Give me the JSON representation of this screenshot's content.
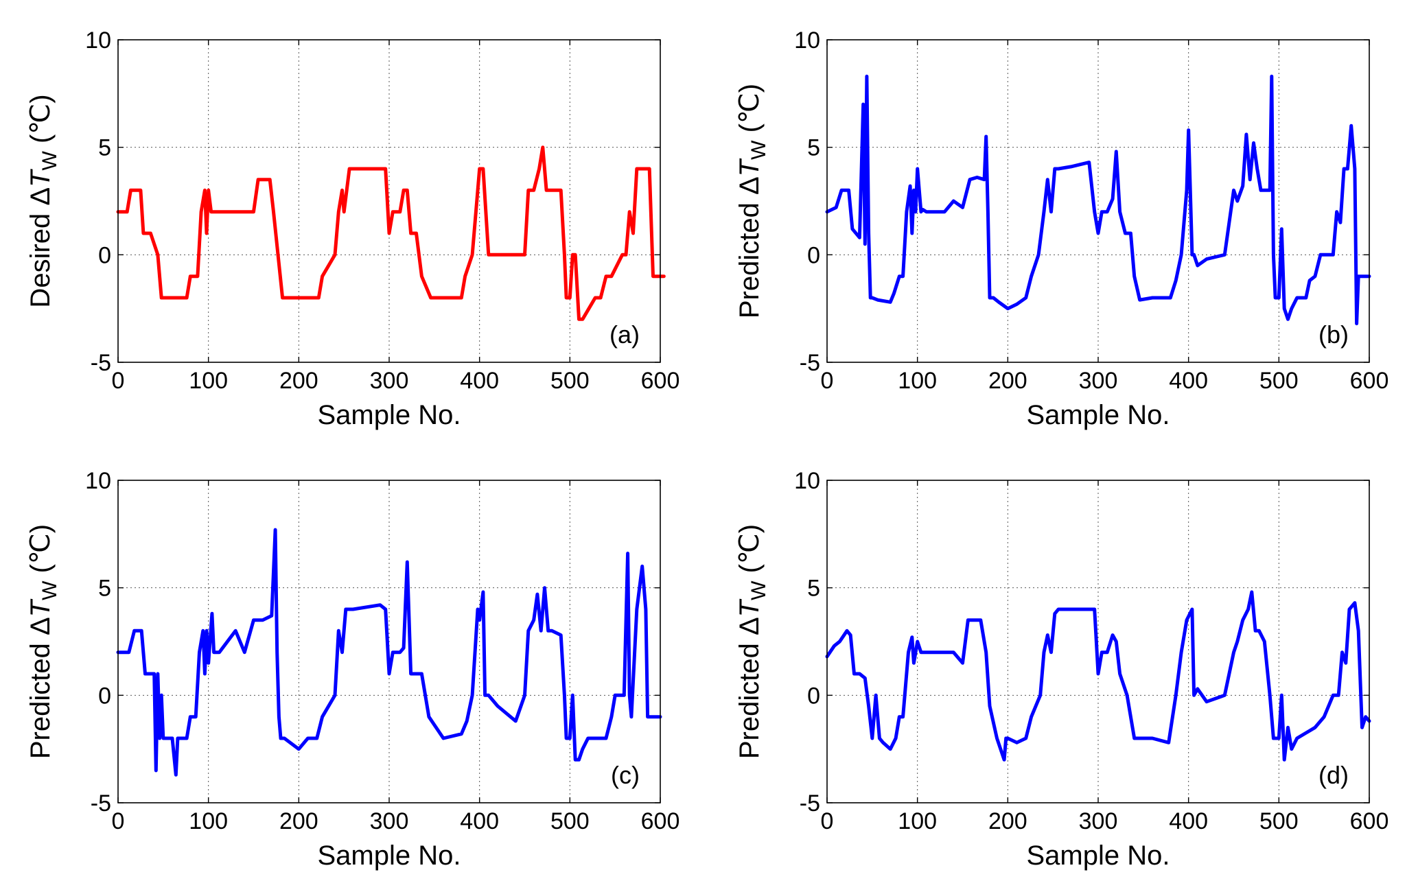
{
  "chart_data": [
    {
      "type": "line",
      "panel_tag": "(a)",
      "title": "",
      "xlabel": "Sample No.",
      "ylabel_left": "Desired",
      "ylabel_delta": "Δ",
      "ylabel_var": "T",
      "ylabel_sub": "W",
      "ylabel_unit": "(℃)",
      "xlim": [
        0,
        600
      ],
      "ylim": [
        -5,
        10
      ],
      "xticks": [
        0,
        100,
        200,
        300,
        400,
        500,
        600
      ],
      "yticks": [
        -5,
        0,
        5,
        10
      ],
      "grid": true,
      "color": "#ff0000",
      "series": [
        {
          "name": "Desired ΔTw",
          "x": [
            0,
            10,
            14,
            25,
            28,
            36,
            44,
            48,
            52,
            76,
            80,
            88,
            92,
            96,
            98,
            100,
            103,
            106,
            150,
            155,
            168,
            172,
            182,
            222,
            226,
            240,
            244,
            248,
            250,
            256,
            296,
            300,
            304,
            312,
            316,
            320,
            324,
            330,
            336,
            346,
            380,
            384,
            392,
            396,
            400,
            404,
            410,
            450,
            454,
            460,
            466,
            470,
            474,
            480,
            490,
            494,
            496,
            500,
            503,
            506,
            510,
            514,
            528,
            534,
            540,
            546,
            558,
            562,
            566,
            570,
            574,
            588,
            592,
            604
          ],
          "values": [
            2,
            2,
            3,
            3,
            1,
            1,
            0,
            -2,
            -2,
            -2,
            -1,
            -1,
            2,
            3,
            1,
            3,
            2,
            2,
            2,
            3.5,
            3.5,
            2,
            -2,
            -2,
            -1,
            0,
            2,
            3,
            2,
            4,
            4,
            1,
            2,
            2,
            3,
            3,
            1,
            1,
            -1,
            -2,
            -2,
            -1,
            0,
            2,
            4,
            4,
            0,
            0,
            3,
            3,
            4,
            5,
            3,
            3,
            3,
            0,
            -2,
            -2,
            0,
            0,
            -3,
            -3,
            -2,
            -2,
            -1,
            -1,
            0,
            0,
            2,
            1,
            4,
            4,
            -1,
            -1
          ]
        }
      ]
    },
    {
      "type": "line",
      "panel_tag": "(b)",
      "title": "",
      "xlabel": "Sample No.",
      "ylabel_left": "Predicted",
      "ylabel_delta": "Δ",
      "ylabel_var": "T",
      "ylabel_sub": "W",
      "ylabel_unit": "(℃)",
      "xlim": [
        0,
        600
      ],
      "ylim": [
        -5,
        10
      ],
      "xticks": [
        0,
        100,
        200,
        300,
        400,
        500,
        600
      ],
      "yticks": [
        -5,
        0,
        5,
        10
      ],
      "grid": true,
      "color": "#0000ff",
      "series": [
        {
          "name": "Predicted ΔTw",
          "x": [
            0,
            10,
            16,
            24,
            28,
            36,
            40,
            42,
            44,
            46,
            48,
            50,
            56,
            70,
            74,
            80,
            84,
            88,
            92,
            94,
            96,
            98,
            100,
            104,
            106,
            110,
            130,
            140,
            150,
            158,
            166,
            174,
            176,
            178,
            180,
            184,
            190,
            200,
            210,
            220,
            226,
            234,
            240,
            244,
            248,
            252,
            256,
            270,
            290,
            296,
            300,
            304,
            310,
            316,
            320,
            324,
            330,
            336,
            340,
            346,
            360,
            380,
            386,
            392,
            398,
            400,
            404,
            406,
            410,
            420,
            440,
            450,
            454,
            460,
            464,
            468,
            472,
            476,
            480,
            484,
            490,
            492,
            494,
            496,
            500,
            503,
            506,
            510,
            514,
            520,
            530,
            534,
            540,
            546,
            560,
            564,
            568,
            572,
            576,
            580,
            584,
            586,
            588,
            590,
            594,
            600
          ],
          "values": [
            2,
            2.2,
            3,
            3,
            1.2,
            0.8,
            7,
            0.5,
            8.3,
            1,
            -2,
            -2,
            -2.1,
            -2.2,
            -1.8,
            -1,
            -1,
            2,
            3.2,
            1,
            3,
            2,
            4,
            2,
            2.1,
            2,
            2,
            2.5,
            2.2,
            3.5,
            3.6,
            3.5,
            5.5,
            2,
            -2,
            -2,
            -2.2,
            -2.5,
            -2.3,
            -2,
            -1,
            0,
            2,
            3.5,
            2,
            4,
            4,
            4.1,
            4.3,
            2,
            1,
            2,
            2,
            2.6,
            4.8,
            2,
            1,
            1,
            -1,
            -2.1,
            -2,
            -2,
            -1.2,
            0,
            3,
            5.8,
            0,
            0,
            -0.5,
            -0.2,
            0,
            3,
            2.5,
            3.2,
            5.6,
            3.5,
            5.2,
            4,
            3,
            3,
            3,
            8.3,
            0,
            -2,
            -2,
            1.2,
            -2.5,
            -3,
            -2.5,
            -2,
            -2,
            -1.2,
            -1,
            0,
            0,
            2,
            1.5,
            4,
            4,
            6,
            4,
            -3.2,
            -1,
            -1,
            -1,
            -1
          ]
        }
      ]
    },
    {
      "type": "line",
      "panel_tag": "(c)",
      "title": "",
      "xlabel": "Sample No.",
      "ylabel_left": "Predicted",
      "ylabel_delta": "Δ",
      "ylabel_var": "T",
      "ylabel_sub": "W",
      "ylabel_unit": "(℃)",
      "xlim": [
        0,
        600
      ],
      "ylim": [
        -5,
        10
      ],
      "xticks": [
        0,
        100,
        200,
        300,
        400,
        500,
        600
      ],
      "yticks": [
        -5,
        0,
        5,
        10
      ],
      "grid": true,
      "color": "#0000ff",
      "series": [
        {
          "name": "Predicted ΔTw",
          "x": [
            0,
            12,
            18,
            26,
            30,
            36,
            40,
            42,
            44,
            46,
            48,
            50,
            52,
            56,
            60,
            64,
            66,
            70,
            76,
            80,
            86,
            90,
            94,
            96,
            98,
            100,
            104,
            106,
            108,
            112,
            130,
            140,
            150,
            160,
            170,
            174,
            176,
            178,
            180,
            184,
            200,
            210,
            220,
            226,
            240,
            244,
            248,
            252,
            260,
            290,
            296,
            300,
            304,
            312,
            316,
            320,
            324,
            328,
            336,
            344,
            360,
            380,
            386,
            392,
            398,
            400,
            404,
            406,
            410,
            420,
            440,
            450,
            454,
            460,
            464,
            468,
            472,
            476,
            480,
            490,
            494,
            496,
            500,
            503,
            506,
            510,
            514,
            520,
            540,
            546,
            550,
            560,
            564,
            566,
            568,
            574,
            580,
            584,
            586,
            590,
            600
          ],
          "values": [
            2,
            2,
            3,
            3,
            1,
            1,
            1,
            -3.5,
            1,
            -2,
            0,
            -2,
            -2,
            -2,
            -2,
            -3.7,
            -2,
            -2,
            -2,
            -1,
            -1,
            2,
            3,
            1,
            3,
            1.5,
            3.8,
            2,
            2,
            2,
            3,
            2,
            3.5,
            3.5,
            3.7,
            7.7,
            2,
            -1,
            -2,
            -2,
            -2.5,
            -2,
            -2,
            -1,
            0,
            3,
            2,
            4,
            4,
            4.2,
            4,
            1,
            2,
            2,
            2.2,
            6.2,
            1,
            1,
            1,
            -1,
            -2,
            -1.8,
            -1.2,
            0,
            4,
            3.5,
            4.8,
            0,
            0,
            -0.5,
            -1.2,
            0,
            3,
            3.5,
            4.7,
            3,
            5,
            3,
            3,
            2.8,
            0,
            -2,
            -2,
            0,
            -3,
            -3,
            -2.5,
            -2,
            -2,
            -1,
            0,
            0,
            6.6,
            0,
            -1,
            4,
            6,
            4,
            -1,
            -1,
            -1
          ]
        }
      ]
    },
    {
      "type": "line",
      "panel_tag": "(d)",
      "title": "",
      "xlabel": "Sample No.",
      "ylabel_left": "Predicted",
      "ylabel_delta": "Δ",
      "ylabel_var": "T",
      "ylabel_sub": "W",
      "ylabel_unit": "(℃)",
      "xlim": [
        0,
        600
      ],
      "ylim": [
        -5,
        10
      ],
      "xticks": [
        0,
        100,
        200,
        300,
        400,
        500,
        600
      ],
      "yticks": [
        -5,
        0,
        5,
        10
      ],
      "grid": true,
      "color": "#0000ff",
      "series": [
        {
          "name": "Predicted ΔTw",
          "x": [
            0,
            8,
            14,
            22,
            26,
            30,
            36,
            42,
            46,
            50,
            54,
            58,
            62,
            70,
            76,
            80,
            84,
            90,
            94,
            96,
            100,
            104,
            108,
            120,
            140,
            150,
            156,
            170,
            176,
            180,
            188,
            196,
            198,
            200,
            210,
            220,
            226,
            236,
            240,
            244,
            248,
            252,
            256,
            260,
            280,
            296,
            300,
            304,
            310,
            316,
            320,
            324,
            332,
            340,
            346,
            360,
            378,
            386,
            392,
            398,
            404,
            406,
            410,
            420,
            440,
            450,
            454,
            460,
            466,
            470,
            474,
            478,
            484,
            490,
            494,
            500,
            503,
            506,
            510,
            514,
            520,
            540,
            550,
            560,
            566,
            570,
            574,
            578,
            584,
            588,
            592,
            596,
            600
          ],
          "values": [
            1.8,
            2.3,
            2.5,
            3,
            2.8,
            1,
            1,
            0.8,
            -0.5,
            -2,
            0,
            -2,
            -2.2,
            -2.5,
            -2,
            -1,
            -1,
            2,
            2.7,
            1.5,
            2.5,
            2,
            2,
            2,
            2,
            1.5,
            3.5,
            3.5,
            2,
            -0.5,
            -2,
            -3,
            -2,
            -2,
            -2.2,
            -2,
            -1,
            0,
            2,
            2.8,
            2,
            3.8,
            4,
            4,
            4,
            4,
            1,
            2,
            2,
            2.8,
            2.5,
            1,
            0,
            -2,
            -2,
            -2,
            -2.2,
            0,
            2,
            3.5,
            4,
            0,
            0.3,
            -0.3,
            0,
            2,
            2.5,
            3.5,
            4,
            4.8,
            3,
            3,
            2.5,
            0,
            -2,
            -2,
            0,
            -3,
            -1.5,
            -2.5,
            -2,
            -1.5,
            -1,
            0,
            0,
            2,
            1.5,
            4,
            4.3,
            3,
            -1.5,
            -1,
            -1.2
          ]
        }
      ]
    }
  ]
}
